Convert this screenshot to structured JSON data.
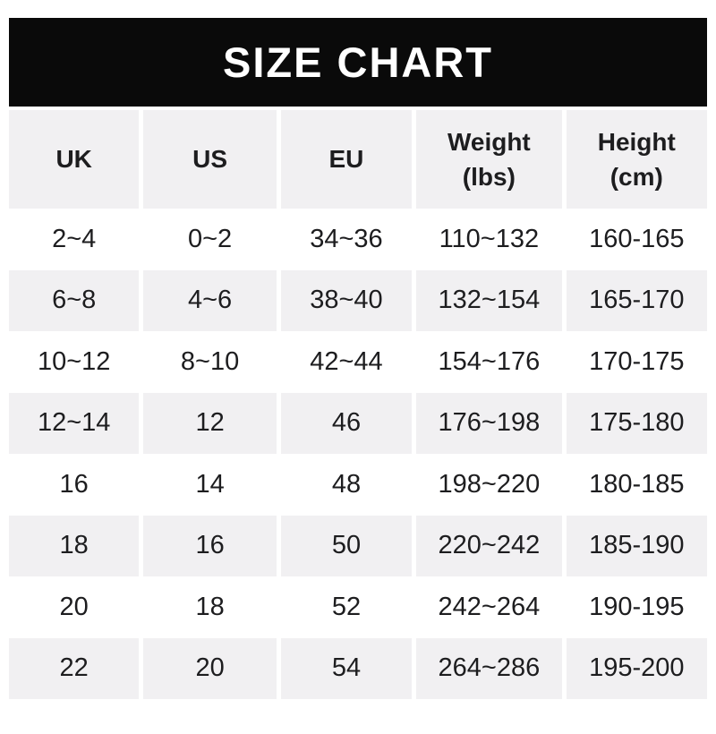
{
  "banner": {
    "title": "SIZE CHART"
  },
  "colors": {
    "banner_bg": "#0a0a0a",
    "banner_text": "#ffffff",
    "cell_bg": "#ffffff",
    "cell_alt_bg": "#f1f0f2",
    "text": "#1d1d1f"
  },
  "table": {
    "headers": [
      "UK",
      "US",
      "EU",
      "Weight\n(lbs)",
      "Height\n(cm)"
    ]
  },
  "chart_data": {
    "type": "table",
    "title": "SIZE CHART",
    "columns": [
      "UK",
      "US",
      "EU",
      "Weight (lbs)",
      "Height (cm)"
    ],
    "rows": [
      [
        "2~4",
        "0~2",
        "34~36",
        "110~132",
        "160-165"
      ],
      [
        "6~8",
        "4~6",
        "38~40",
        "132~154",
        "165-170"
      ],
      [
        "10~12",
        "8~10",
        "42~44",
        "154~176",
        "170-175"
      ],
      [
        "12~14",
        "12",
        "46",
        "176~198",
        "175-180"
      ],
      [
        "16",
        "14",
        "48",
        "198~220",
        "180-185"
      ],
      [
        "18",
        "16",
        "50",
        "220~242",
        "185-190"
      ],
      [
        "20",
        "18",
        "52",
        "242~264",
        "190-195"
      ],
      [
        "22",
        "20",
        "54",
        "264~286",
        "195-200"
      ]
    ],
    "layout": {
      "row_striping": "alternating starting white after gray header",
      "grid": "white gutters between columns"
    }
  }
}
